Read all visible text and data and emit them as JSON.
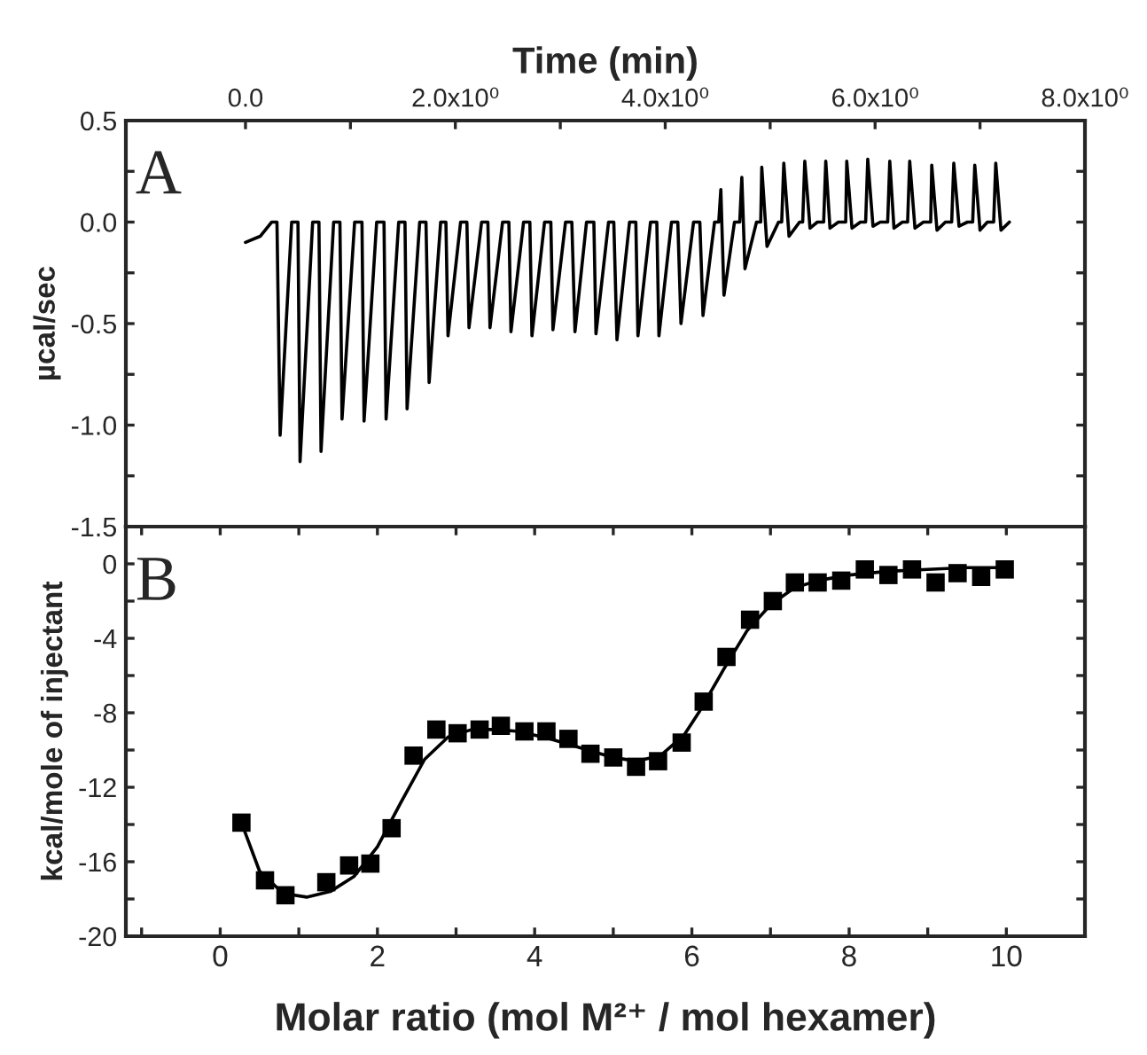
{
  "chart_data": [
    {
      "type": "line",
      "xlabel": "Time (min)",
      "ylabel": "µcal/sec",
      "annotations": [
        "A"
      ],
      "xlim": [
        -1.14,
        8.0
      ],
      "xticks": [
        {
          "value": 0,
          "label": "0.0"
        },
        {
          "value": 1,
          "label": null
        },
        {
          "value": 2,
          "label": "2.0x10⁰"
        },
        {
          "value": 3,
          "label": null
        },
        {
          "value": 4,
          "label": "4.0x10⁰"
        },
        {
          "value": 5,
          "label": null
        },
        {
          "value": 6,
          "label": "6.0x10⁰"
        },
        {
          "value": 7,
          "label": null
        },
        {
          "value": 8,
          "label": "8.0x10⁰"
        }
      ],
      "ylim": [
        -1.5,
        0.5
      ],
      "yticks": [
        {
          "value": 0.5,
          "label": "0.5"
        },
        {
          "value": 0.25,
          "label": null
        },
        {
          "value": 0.0,
          "label": "0.0"
        },
        {
          "value": -0.25,
          "label": null
        },
        {
          "value": -0.5,
          "label": "-0.5"
        },
        {
          "value": -0.75,
          "label": null
        },
        {
          "value": -1.0,
          "label": "-1.0"
        },
        {
          "value": -1.25,
          "label": null
        },
        {
          "value": -1.5,
          "label": "-1.5"
        }
      ],
      "grid": false,
      "legend": false,
      "series": [
        {
          "color": "#000000",
          "line_style": "solid",
          "marker": "none",
          "x": [
            0.0,
            0.14,
            0.25,
            0.3,
            0.33,
            0.44,
            0.5,
            0.52,
            0.64,
            0.7,
            0.72,
            0.84,
            0.9,
            0.92,
            1.04,
            1.11,
            1.13,
            1.25,
            1.32,
            1.34,
            1.46,
            1.52,
            1.54,
            1.66,
            1.72,
            1.75,
            1.86,
            1.91,
            1.93,
            2.05,
            2.11,
            2.13,
            2.25,
            2.31,
            2.33,
            2.45,
            2.51,
            2.53,
            2.65,
            2.71,
            2.73,
            2.85,
            2.91,
            2.93,
            3.05,
            3.11,
            3.14,
            3.25,
            3.32,
            3.34,
            3.46,
            3.51,
            3.54,
            3.66,
            3.72,
            3.74,
            3.86,
            3.92,
            3.94,
            4.06,
            4.12,
            4.15,
            4.27,
            4.33,
            4.36,
            4.47,
            4.51,
            4.53,
            4.56,
            4.66,
            4.71,
            4.73,
            4.76,
            4.87,
            4.91,
            4.92,
            4.97,
            5.08,
            5.11,
            5.13,
            5.18,
            5.28,
            5.31,
            5.33,
            5.38,
            5.45,
            5.51,
            5.53,
            5.57,
            5.65,
            5.72,
            5.73,
            5.78,
            5.86,
            5.91,
            5.93,
            5.98,
            6.05,
            6.12,
            6.14,
            6.18,
            6.26,
            6.31,
            6.33,
            6.38,
            6.46,
            6.53,
            6.54,
            6.59,
            6.67,
            6.73,
            6.75,
            6.8,
            6.88,
            6.93,
            6.95,
            7.0,
            7.07,
            7.13,
            7.15,
            7.2,
            7.28
          ],
          "values": [
            -0.1,
            -0.07,
            0,
            0,
            -1.05,
            0,
            0,
            -1.18,
            0,
            0,
            -1.13,
            0,
            0,
            -0.97,
            0,
            0,
            -0.98,
            0,
            0,
            -0.97,
            0,
            0,
            -0.92,
            0,
            0,
            -0.79,
            0,
            0,
            -0.56,
            0,
            0,
            -0.52,
            0,
            0,
            -0.52,
            0,
            0,
            -0.54,
            0,
            0,
            -0.56,
            0,
            0,
            -0.53,
            0,
            0,
            -0.54,
            0,
            0,
            -0.55,
            0,
            0,
            -0.58,
            0,
            0,
            -0.56,
            0,
            0,
            -0.56,
            0,
            0,
            -0.5,
            0,
            0,
            -0.46,
            0,
            0,
            0.16,
            -0.36,
            0,
            0,
            0.22,
            -0.23,
            0,
            0,
            0.27,
            -0.12,
            0,
            0,
            0.29,
            -0.07,
            0,
            0,
            0.3,
            -0.03,
            0,
            0,
            0.3,
            -0.03,
            0,
            0,
            0.3,
            -0.03,
            0,
            0,
            0.31,
            -0.02,
            0,
            0,
            0.3,
            -0.03,
            0,
            0,
            0.3,
            -0.03,
            0,
            0,
            0.28,
            -0.04,
            0,
            0,
            0.29,
            -0.02,
            0,
            0,
            0.28,
            -0.04,
            0,
            0,
            0.29,
            -0.04,
            0
          ]
        }
      ]
    },
    {
      "type": "scatter",
      "xlabel": "Molar ratio (mol M²⁺ / mol hexamer)",
      "ylabel": "kcal/mole of injectant",
      "annotations": [
        "B"
      ],
      "xlim": [
        -1.2,
        11
      ],
      "xticks": [
        {
          "value": -1,
          "label": null
        },
        0,
        {
          "value": 1,
          "label": null
        },
        2,
        {
          "value": 3,
          "label": null
        },
        4,
        {
          "value": 5,
          "label": null
        },
        6,
        {
          "value": 7,
          "label": null
        },
        8,
        {
          "value": 9,
          "label": null
        },
        10
      ],
      "ylim": [
        -20,
        2
      ],
      "yticks": [
        0,
        {
          "value": -2,
          "label": null
        },
        -4,
        {
          "value": -6,
          "label": null
        },
        -8,
        {
          "value": -10,
          "label": null
        },
        -12,
        {
          "value": -14,
          "label": null
        },
        -16,
        {
          "value": -18,
          "label": null
        },
        -20
      ],
      "grid": false,
      "legend": false,
      "series": [
        {
          "type": "scatter",
          "color": "#000000",
          "marker": "square",
          "x": [
            0.27,
            0.57,
            0.83,
            1.35,
            1.64,
            1.91,
            2.18,
            2.46,
            2.75,
            3.02,
            3.3,
            3.57,
            3.87,
            4.15,
            4.43,
            4.71,
            5.0,
            5.29,
            5.57,
            5.87,
            6.15,
            6.44,
            6.74,
            7.03,
            7.31,
            7.6,
            7.9,
            8.2,
            8.5,
            8.8,
            9.1,
            9.38,
            9.68,
            9.98
          ],
          "values": [
            -13.9,
            -17.0,
            -17.8,
            -17.1,
            -16.2,
            -16.1,
            -14.2,
            -10.3,
            -8.9,
            -9.1,
            -8.9,
            -8.7,
            -9.0,
            -9.0,
            -9.4,
            -10.2,
            -10.4,
            -10.9,
            -10.6,
            -9.6,
            -7.4,
            -5.0,
            -3.0,
            -2.0,
            -1.0,
            -1.0,
            -0.9,
            -0.3,
            -0.6,
            -0.3,
            -1.0,
            -0.5,
            -0.7,
            -0.3
          ]
        },
        {
          "type": "line",
          "color": "#000000",
          "line_style": "solid",
          "marker": "none",
          "x": [
            0.27,
            0.5,
            0.8,
            1.1,
            1.4,
            1.7,
            2.0,
            2.3,
            2.6,
            2.9,
            3.2,
            3.5,
            3.8,
            4.2,
            4.6,
            5.0,
            5.3,
            5.6,
            5.9,
            6.1,
            6.4,
            6.7,
            7.0,
            7.3,
            7.6,
            8.0,
            8.5,
            9.0,
            9.5,
            9.98
          ],
          "values": [
            -13.9,
            -16.5,
            -17.7,
            -17.9,
            -17.6,
            -16.8,
            -15.2,
            -12.8,
            -10.5,
            -9.3,
            -8.9,
            -8.9,
            -9.0,
            -9.4,
            -9.9,
            -10.4,
            -10.6,
            -10.3,
            -9.2,
            -7.9,
            -5.7,
            -3.6,
            -2.2,
            -1.3,
            -0.9,
            -0.6,
            -0.4,
            -0.3,
            -0.2,
            -0.2
          ]
        }
      ]
    }
  ]
}
